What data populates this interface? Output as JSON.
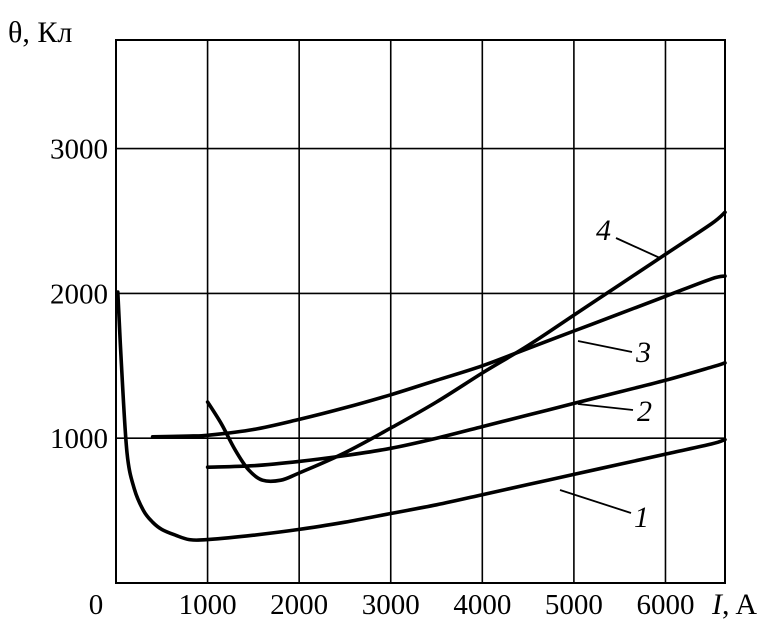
{
  "chart_data": {
    "type": "line",
    "ylabel": "θ,  Кл",
    "xlabel_italic": "I",
    "xlabel_unit": ", A",
    "xlim": [
      0,
      6650
    ],
    "ylim": [
      0,
      3750
    ],
    "xticks": [
      0,
      1000,
      2000,
      3000,
      4000,
      5000,
      6000
    ],
    "xtick_labels": [
      "0",
      "1000",
      "2000",
      "3000",
      "4000",
      "5000",
      "6000"
    ],
    "yticks": [
      1000,
      2000,
      3000
    ],
    "ytick_labels": [
      "1000",
      "2000",
      "3000"
    ],
    "grid": true,
    "series": [
      {
        "name": "1",
        "x": [
          20,
          60,
          120,
          200,
          300,
          400,
          500,
          650,
          800,
          1000,
          1500,
          2000,
          2500,
          3000,
          3500,
          4000,
          4500,
          5000,
          5500,
          6000,
          6500,
          6650
        ],
        "y": [
          2010,
          1500,
          900,
          650,
          500,
          420,
          370,
          330,
          300,
          300,
          330,
          370,
          420,
          480,
          540,
          610,
          680,
          750,
          820,
          890,
          960,
          990
        ]
      },
      {
        "name": "2",
        "x": [
          1000,
          1500,
          2000,
          2500,
          3000,
          3500,
          4000,
          4500,
          5000,
          5500,
          6000,
          6500,
          6650
        ],
        "y": [
          800,
          810,
          840,
          880,
          930,
          1000,
          1080,
          1160,
          1240,
          1320,
          1400,
          1490,
          1520
        ]
      },
      {
        "name": "3",
        "x": [
          400,
          800,
          1000,
          1500,
          2000,
          2500,
          3000,
          3500,
          4000,
          4500,
          5000,
          5500,
          6000,
          6500,
          6650
        ],
        "y": [
          1010,
          1015,
          1020,
          1060,
          1130,
          1210,
          1300,
          1400,
          1500,
          1620,
          1740,
          1860,
          1980,
          2100,
          2120
        ]
      },
      {
        "name": "4",
        "x": [
          1000,
          1150,
          1300,
          1450,
          1600,
          1800,
          2000,
          2500,
          3000,
          3500,
          4000,
          4500,
          5000,
          5500,
          6000,
          6500,
          6650
        ],
        "y": [
          1250,
          1100,
          920,
          780,
          710,
          710,
          760,
          900,
          1070,
          1250,
          1450,
          1640,
          1850,
          2060,
          2270,
          2480,
          2560
        ]
      }
    ]
  }
}
